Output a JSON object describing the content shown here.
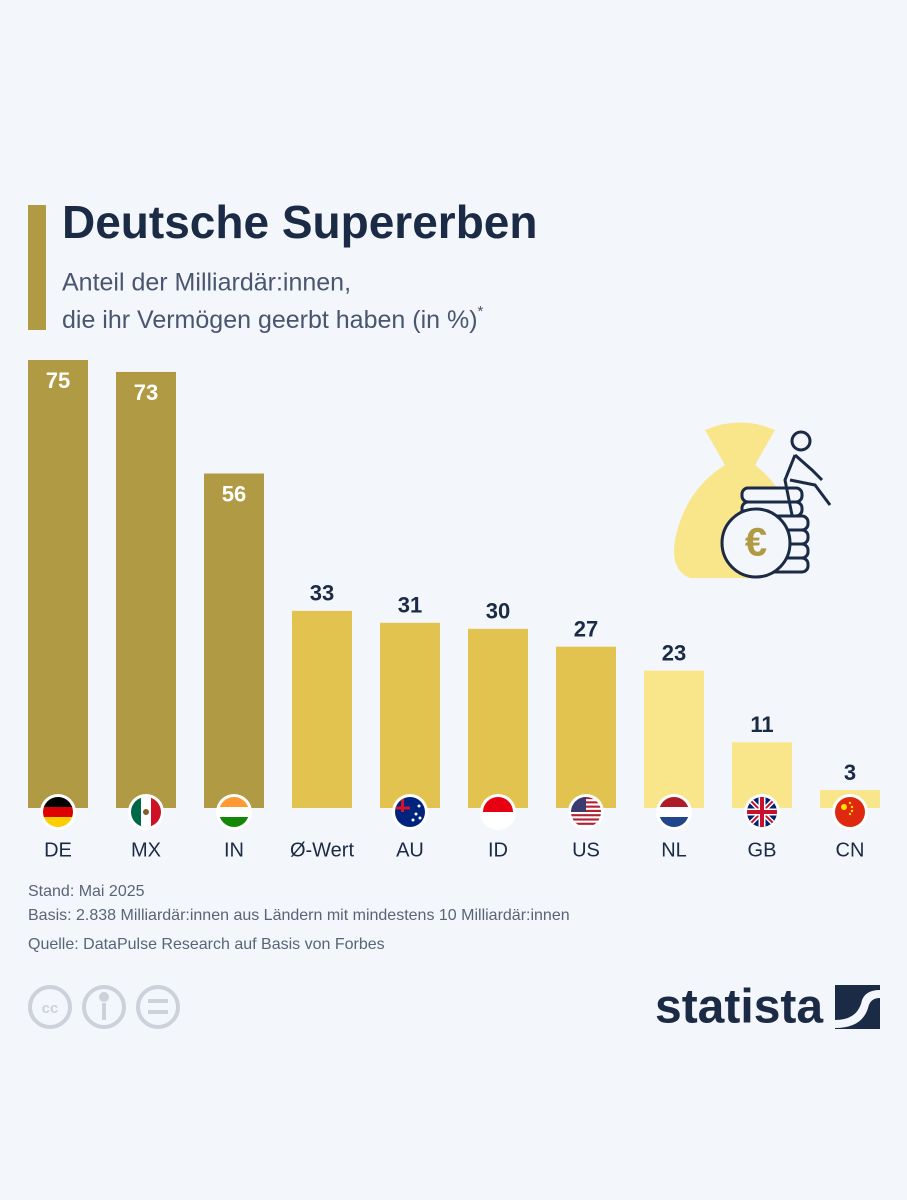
{
  "chart_data": {
    "type": "bar",
    "title": "Deutsche Supererben",
    "subtitle": [
      "Anteil der Milliardär:innen,",
      "die ihr Vermögen geerbt haben (in %)"
    ],
    "subtitle_marker": "*",
    "categories": [
      "DE",
      "MX",
      "IN",
      "Ø-Wert",
      "AU",
      "ID",
      "US",
      "NL",
      "GB",
      "CN"
    ],
    "values": [
      75,
      73,
      56,
      33,
      31,
      30,
      27,
      23,
      11,
      3
    ],
    "colors": [
      "#b19a44",
      "#b19a44",
      "#b19a44",
      "#e3c34f",
      "#e3c34f",
      "#e3c34f",
      "#e3c34f",
      "#f9e58a",
      "#f9e58a",
      "#f9e58a"
    ],
    "ylim": [
      0,
      75
    ],
    "notes": [
      "Stand: Mai 2025",
      "Basis: 2.838 Milliardär:innen aus Ländern mit mindestens 10 Milliardär:innen",
      "Quelle: DataPulse Research auf Basis von Forbes"
    ],
    "brand": "statista"
  }
}
